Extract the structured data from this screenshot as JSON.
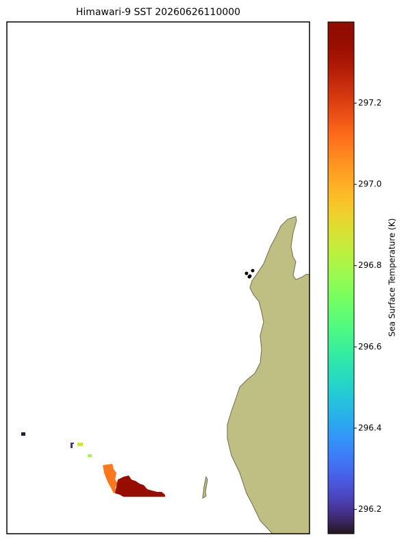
{
  "chart_data": {
    "type": "map",
    "title": "Himawari-9 SST 20260626110000",
    "colorbar_label": "Sea Surface Temperature (K)",
    "colormap": "turbo",
    "clim": [
      296.14,
      297.4
    ],
    "cticks": [
      296.2,
      296.4,
      296.6,
      296.8,
      {
        "value": 297.0,
        "label": "297.0"
      },
      297.2
    ],
    "cells": [
      296.15,
      296.2,
      296.85,
      296.8,
      297.1,
      297.35
    ],
    "land_color": "#bfbf84"
  }
}
